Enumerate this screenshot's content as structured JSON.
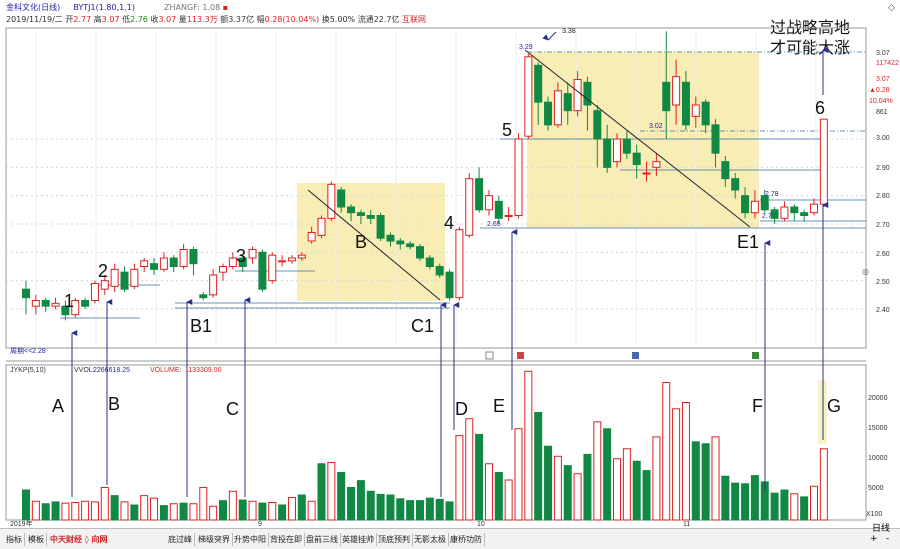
{
  "header": {
    "stock_name": "金科文化(日线)",
    "indicator": "BYTJ1(1.80,1,1)",
    "zhangf": "ZHANGF: 1.08",
    "date": "2019/11/19/二",
    "open_label": "开",
    "open": "2.77",
    "high_label": "高",
    "high": "3.07",
    "low_label": "低",
    "low": "2.76",
    "close_label": "收",
    "close": "3.07",
    "volume_label": "量",
    "volume": "113.3万",
    "amount_label": "额",
    "amount": "3.37亿",
    "change_label": "幅",
    "change": "0.28(10.04%)",
    "turnover_label": "换",
    "turnover": "5.00%",
    "float_label": "流通",
    "float": "22.7亿",
    "link": "互联网"
  },
  "headline": {
    "line1": "过战略高地",
    "line2": "才可能大涨"
  },
  "price_axis": [
    "3.07",
    "3.00",
    "2.90",
    "2.80",
    "2.70",
    "2.60",
    "2.50",
    "2.40"
  ],
  "right_info": {
    "v1": "3.07",
    "v2": "117422",
    "v3": "3.07",
    "v4": "▲0.28",
    "v5": "10.04%",
    "v6": "861"
  },
  "annotations": {
    "peak": "3.38",
    "p329": "3.29",
    "p302": "3.02",
    "p278": "2.78",
    "p265": "2.65",
    "p27": "2.7",
    "bottom_note": "周期<<2.28"
  },
  "point_labels": [
    "1",
    "2",
    "3",
    "4",
    "5",
    "6",
    "B",
    "B1",
    "C1",
    "E1"
  ],
  "volume_labels": [
    "A",
    "B",
    "C",
    "D",
    "E",
    "F",
    "G"
  ],
  "volume_header": {
    "name": "JYKP(5,10)",
    "vvol_label": "VVOL:",
    "vvol": "2266618.25",
    "volume_label": "VOLUME:",
    "volume": "1133309.00"
  },
  "volume_axis": [
    "20000",
    "15000",
    "10000",
    "5000"
  ],
  "axis_unit": "X100",
  "date_ticks": [
    "2019年",
    "9",
    "10",
    "11"
  ],
  "bottom_tabs": [
    "指标",
    "模板",
    "底过峰",
    "梯级突界",
    "升势中阳",
    "背投在即",
    "盘前三线",
    "英雄挂帅",
    "顶底预判",
    "无影太极",
    "康桥功防"
  ],
  "logo_text": "中天财经 ◊ 向网",
  "bottom_right": {
    "period": "日线",
    "plus": "+",
    "minus": "-"
  },
  "colors": {
    "up": "#dd2222",
    "down": "#118844",
    "box": "#f8edb4",
    "grid": "#d6d6d6"
  }
}
